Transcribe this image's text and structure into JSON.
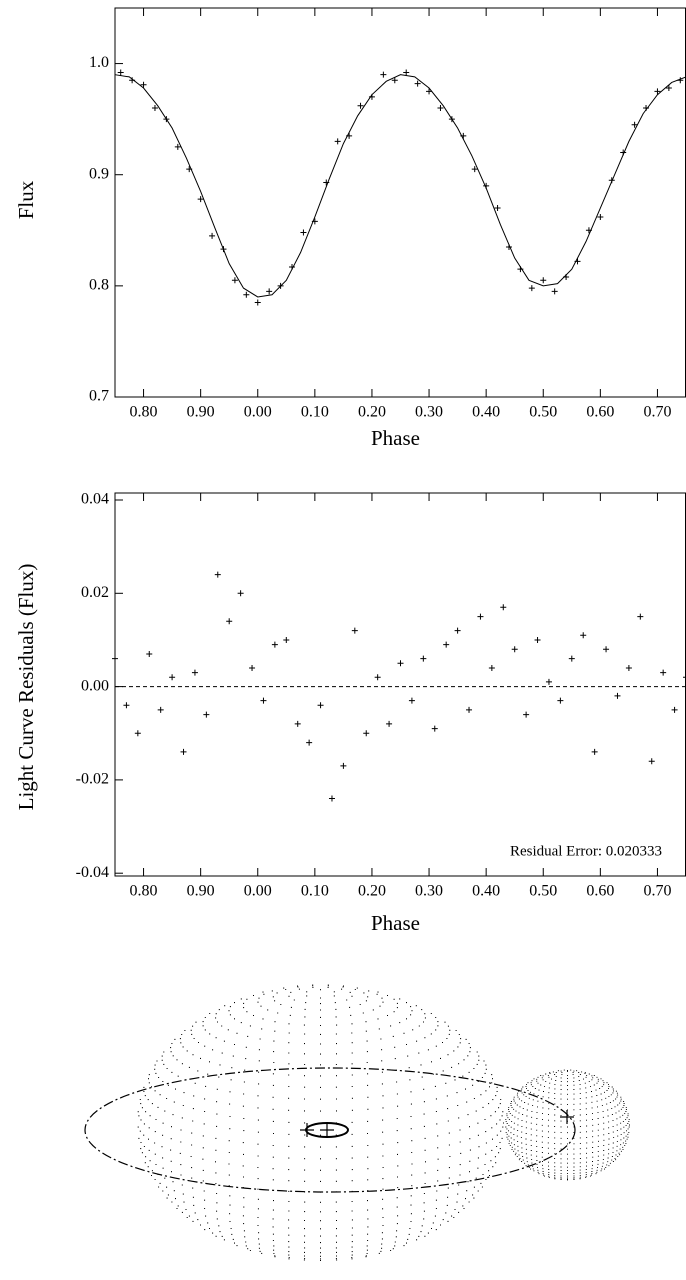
{
  "chart_data": [
    {
      "type": "line",
      "x_label": "Phase",
      "y_label": "Flux",
      "xlim": [
        0.75,
        1.75
      ],
      "ylim": [
        0.7,
        1.05
      ],
      "xticks": [
        {
          "value": 0.8,
          "label": "0.80"
        },
        {
          "value": 0.9,
          "label": "0.90"
        },
        {
          "value": 1.0,
          "label": "0.00"
        },
        {
          "value": 1.1,
          "label": "0.10"
        },
        {
          "value": 1.2,
          "label": "0.20"
        },
        {
          "value": 1.3,
          "label": "0.30"
        },
        {
          "value": 1.4,
          "label": "0.40"
        },
        {
          "value": 1.5,
          "label": "0.50"
        },
        {
          "value": 1.6,
          "label": "0.60"
        },
        {
          "value": 1.7,
          "label": "0.70"
        }
      ],
      "yticks": [
        0.7,
        0.8,
        0.9,
        {
          "value": 1.0,
          "label": "1.0"
        }
      ],
      "series": [
        {
          "type": "scatter",
          "color": "#000000",
          "x": [
            0.76,
            0.78,
            0.8,
            0.82,
            0.84,
            0.86,
            0.88,
            0.9,
            0.92,
            0.94,
            0.96,
            0.98,
            1.0,
            1.02,
            1.04,
            1.06,
            1.08,
            1.1,
            1.12,
            1.14,
            1.16,
            1.18,
            1.2,
            1.22,
            1.24,
            1.26,
            1.28,
            1.3,
            1.32,
            1.34,
            1.36,
            1.38,
            1.4,
            1.42,
            1.44,
            1.46,
            1.48,
            1.5,
            1.52,
            1.54,
            1.56,
            1.58,
            1.6,
            1.62,
            1.64,
            1.66,
            1.68,
            1.7,
            1.72,
            1.74
          ],
          "values": [
            0.992,
            0.985,
            0.981,
            0.96,
            0.95,
            0.925,
            0.905,
            0.878,
            0.845,
            0.833,
            0.805,
            0.792,
            0.785,
            0.795,
            0.8,
            0.817,
            0.848,
            0.858,
            0.893,
            0.93,
            0.935,
            0.962,
            0.97,
            0.99,
            0.985,
            0.992,
            0.982,
            0.975,
            0.96,
            0.95,
            0.935,
            0.905,
            0.89,
            0.87,
            0.835,
            0.815,
            0.798,
            0.805,
            0.795,
            0.808,
            0.822,
            0.85,
            0.862,
            0.895,
            0.92,
            0.945,
            0.96,
            0.975,
            0.978,
            0.985
          ]
        },
        {
          "type": "line",
          "color": "#000000",
          "x": [
            0.75,
            0.775,
            0.8,
            0.825,
            0.85,
            0.875,
            0.9,
            0.925,
            0.95,
            0.975,
            1.0,
            1.025,
            1.05,
            1.075,
            1.1,
            1.125,
            1.15,
            1.175,
            1.2,
            1.225,
            1.25,
            1.275,
            1.3,
            1.325,
            1.35,
            1.375,
            1.4,
            1.425,
            1.45,
            1.475,
            1.5,
            1.525,
            1.55,
            1.575,
            1.6,
            1.625,
            1.65,
            1.675,
            1.7,
            1.725,
            1.75
          ],
          "values": [
            0.99,
            0.988,
            0.978,
            0.962,
            0.942,
            0.915,
            0.885,
            0.852,
            0.82,
            0.798,
            0.79,
            0.792,
            0.805,
            0.83,
            0.862,
            0.896,
            0.928,
            0.953,
            0.972,
            0.984,
            0.99,
            0.988,
            0.978,
            0.962,
            0.942,
            0.917,
            0.888,
            0.855,
            0.825,
            0.805,
            0.8,
            0.802,
            0.815,
            0.84,
            0.87,
            0.9,
            0.93,
            0.955,
            0.972,
            0.983,
            0.988
          ]
        }
      ]
    },
    {
      "type": "scatter",
      "x_label": "Phase",
      "y_label": "Light Curve Residuals (Flux)",
      "annotation": "Residual Error: 0.020333",
      "hline": 0,
      "xlim": [
        0.75,
        1.75
      ],
      "ylim": [
        -0.0406,
        0.0415
      ],
      "xticks": [
        {
          "value": 0.8,
          "label": "0.80"
        },
        {
          "value": 0.9,
          "label": "0.90"
        },
        {
          "value": 1.0,
          "label": "0.00"
        },
        {
          "value": 1.1,
          "label": "0.10"
        },
        {
          "value": 1.2,
          "label": "0.20"
        },
        {
          "value": 1.3,
          "label": "0.30"
        },
        {
          "value": 1.4,
          "label": "0.40"
        },
        {
          "value": 1.5,
          "label": "0.50"
        },
        {
          "value": 1.6,
          "label": "0.60"
        },
        {
          "value": 1.7,
          "label": "0.70"
        }
      ],
      "yticks": [
        {
          "value": -0.04,
          "label": "-0.04"
        },
        {
          "value": -0.02,
          "label": "-0.02"
        },
        {
          "value": 0,
          "label": "0.00"
        },
        {
          "value": 0.02,
          "label": "0.02"
        },
        {
          "value": 0.04,
          "label": "0.04"
        }
      ],
      "series": [
        {
          "type": "scatter",
          "color": "#000000",
          "x": [
            0.75,
            0.77,
            0.79,
            0.81,
            0.83,
            0.85,
            0.87,
            0.89,
            0.91,
            0.93,
            0.95,
            0.97,
            0.99,
            1.01,
            1.03,
            1.05,
            1.07,
            1.09,
            1.11,
            1.13,
            1.15,
            1.17,
            1.19,
            1.21,
            1.23,
            1.25,
            1.27,
            1.29,
            1.31,
            1.33,
            1.35,
            1.37,
            1.39,
            1.41,
            1.43,
            1.45,
            1.47,
            1.49,
            1.51,
            1.53,
            1.55,
            1.57,
            1.59,
            1.61,
            1.63,
            1.65,
            1.67,
            1.69,
            1.71,
            1.73,
            1.75
          ],
          "values": [
            0.006,
            -0.004,
            -0.01,
            0.007,
            -0.005,
            0.002,
            -0.014,
            0.003,
            -0.006,
            0.024,
            0.014,
            0.02,
            0.004,
            -0.003,
            0.009,
            0.01,
            -0.008,
            -0.012,
            -0.004,
            -0.024,
            -0.017,
            0.012,
            -0.01,
            0.002,
            -0.008,
            0.005,
            -0.003,
            0.006,
            -0.009,
            0.009,
            0.012,
            -0.005,
            0.015,
            0.004,
            0.017,
            0.008,
            -0.006,
            0.01,
            0.001,
            -0.003,
            0.006,
            0.011,
            -0.014,
            0.008,
            -0.002,
            0.004,
            0.015,
            -0.016,
            0.003,
            -0.005,
            0.002
          ]
        }
      ]
    }
  ]
}
